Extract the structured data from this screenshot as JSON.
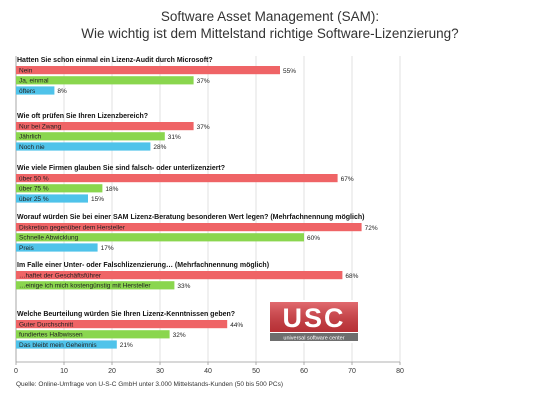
{
  "title": {
    "line1": "Software Asset Management (SAM):",
    "line2": "Wie wichtig ist dem Mittelstand richtige Software-Lizenzierung?"
  },
  "source": "Quelle: Online-Umfrage von U-S-C GmbH unter 3.000 Mittelstands-Kunden  (50 bis 500 PCs)",
  "logo": {
    "text": "USC",
    "subtext": "universal software center"
  },
  "colors": {
    "red": "#ef6466",
    "green": "#8ad64e",
    "blue": "#4fc3ea",
    "grid": "#d9d9d9",
    "axis": "#999999"
  },
  "chart_data": {
    "type": "bar",
    "orientation": "horizontal",
    "xlim": [
      0,
      80
    ],
    "xticks": [
      0,
      10,
      20,
      30,
      40,
      50,
      60,
      70,
      80
    ],
    "grid": true,
    "unit": "%",
    "questions": [
      {
        "question": "Hatten Sie schon einmal ein Lizenz-Audit durch Microsoft?",
        "bars": [
          {
            "label": "Nein",
            "value": 55,
            "color": "red"
          },
          {
            "label": "Ja, einmal",
            "value": 37,
            "color": "green"
          },
          {
            "label": "öfters",
            "value": 8,
            "color": "blue"
          }
        ]
      },
      {
        "question": "Wie oft prüfen Sie Ihren Lizenzbereich?",
        "bars": [
          {
            "label": "Nur bei Zwang",
            "value": 37,
            "color": "red"
          },
          {
            "label": "Jährlich",
            "value": 31,
            "color": "green"
          },
          {
            "label": "Noch nie",
            "value": 28,
            "color": "blue"
          }
        ]
      },
      {
        "question": "Wie viele Firmen glauben Sie sind falsch- oder unterlizenziert?",
        "bars": [
          {
            "label": "über 50 %",
            "value": 67,
            "color": "red"
          },
          {
            "label": "über 75 %",
            "value": 18,
            "color": "green"
          },
          {
            "label": "über 25 %",
            "value": 15,
            "color": "blue"
          }
        ]
      },
      {
        "question": "Worauf würden Sie bei einer SAM Lizenz-Beratung besonderen Wert legen? (Mehrfachnennung möglich)",
        "bars": [
          {
            "label": "Diskretion gegenüber dem Hersteller",
            "value": 72,
            "color": "red"
          },
          {
            "label": "Schnelle Abwicklung",
            "value": 60,
            "color": "green"
          },
          {
            "label": "Preis",
            "value": 17,
            "color": "blue"
          }
        ]
      },
      {
        "question": "Im Falle einer Unter- oder Falschlizenzierung… (Mehrfachnennung möglich)",
        "bars": [
          {
            "label": "…haftet der Geschäftsführer",
            "value": 68,
            "color": "red"
          },
          {
            "label": "…einige ich mich kostengünstig mit Hersteller",
            "value": 33,
            "color": "green"
          }
        ]
      },
      {
        "question": "Welche Beurteilung würden Sie Ihren Lizenz-Kenntnissen geben?",
        "bars": [
          {
            "label": "Guter Durchschnitt",
            "value": 44,
            "color": "red"
          },
          {
            "label": "fundiertes Halbwissen",
            "value": 32,
            "color": "green"
          },
          {
            "label": "Das bleibt mein Geheimnis",
            "value": 21,
            "color": "blue"
          }
        ]
      }
    ]
  }
}
